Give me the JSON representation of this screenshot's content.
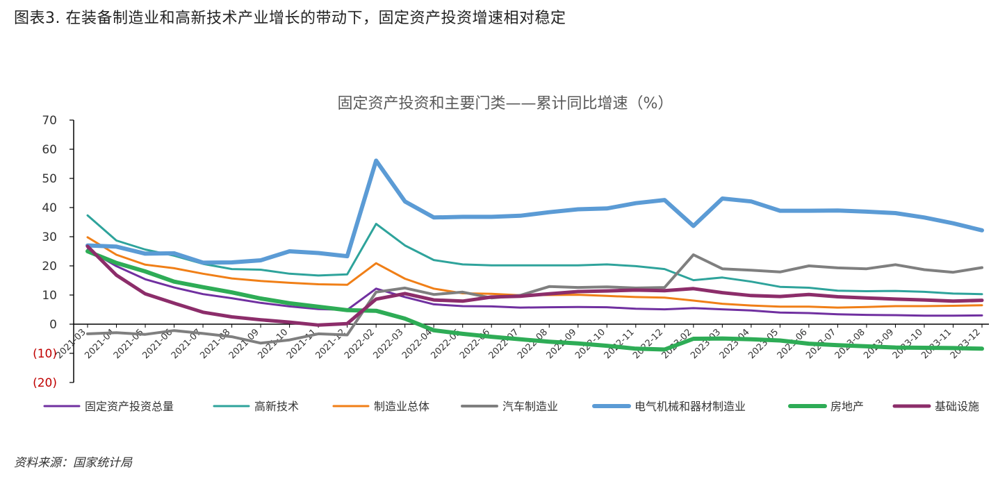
{
  "figure_title": "图表3. 在装备制造业和高新技术产业增长的带动下，固定资产投资增速相对稳定",
  "source": "资料来源：国家统计局",
  "chart_data": {
    "type": "line",
    "title": "固定资产投资和主要门类——累计同比增速（%）",
    "xlabel": "",
    "ylabel": "",
    "ylim": [
      -20,
      70
    ],
    "yticks": [
      70,
      60,
      50,
      40,
      30,
      20,
      10,
      0,
      -10,
      -20
    ],
    "ytick_labels": [
      "70",
      "60",
      "50",
      "40",
      "30",
      "20",
      "10",
      "0",
      "(10)",
      "(20)"
    ],
    "negative_tick_color": "#c00000",
    "grid": false,
    "legend_position": "bottom",
    "x": [
      "2021-03",
      "2021-04",
      "2021-05",
      "2021-06",
      "2021-07",
      "2021-08",
      "2021-09",
      "2021-10",
      "2021-11",
      "2021-12",
      "2022-02",
      "2022-03",
      "2022-04",
      "2022-05",
      "2022-06",
      "2022-07",
      "2022-08",
      "2022-09",
      "2022-10",
      "2022-11",
      "2022-12",
      "2023-02",
      "2023-03",
      "2023-04",
      "2023-05",
      "2023-06",
      "2023-07",
      "2023-08",
      "2023-09",
      "2023-10",
      "2023-11",
      "2023-12"
    ],
    "series": [
      {
        "name": "固定资产投资总量",
        "color": "#7030a0",
        "width": 3,
        "values": [
          25.6,
          19.9,
          15.4,
          12.6,
          10.3,
          8.9,
          7.3,
          6.1,
          5.2,
          4.9,
          12.2,
          9.3,
          6.8,
          6.2,
          6.1,
          5.7,
          5.8,
          5.9,
          5.8,
          5.3,
          5.1,
          5.5,
          5.1,
          4.7,
          4.0,
          3.8,
          3.4,
          3.2,
          3.1,
          2.9,
          2.9,
          3.0
        ]
      },
      {
        "name": "高新技术",
        "color": "#2ea39b",
        "width": 3,
        "values": [
          37.3,
          28.7,
          25.6,
          23.5,
          20.7,
          18.9,
          18.7,
          17.3,
          16.7,
          17.1,
          34.4,
          27.0,
          22.0,
          20.5,
          20.2,
          20.2,
          20.2,
          20.2,
          20.5,
          19.9,
          18.9,
          15.1,
          16.0,
          14.6,
          12.8,
          12.5,
          11.5,
          11.3,
          11.4,
          11.1,
          10.5,
          10.3
        ]
      },
      {
        "name": "制造业总体",
        "color": "#f07f17",
        "width": 3,
        "values": [
          29.8,
          23.8,
          20.4,
          19.2,
          17.3,
          15.7,
          14.8,
          14.2,
          13.7,
          13.5,
          20.9,
          15.6,
          12.2,
          10.6,
          10.4,
          9.9,
          10.0,
          10.1,
          9.7,
          9.3,
          9.1,
          8.1,
          7.0,
          6.4,
          6.0,
          6.0,
          5.7,
          5.9,
          6.2,
          6.2,
          6.3,
          6.5
        ]
      },
      {
        "name": "汽车制造业",
        "color": "#7f7f7f",
        "width": 4,
        "values": [
          -3.3,
          -2.9,
          -3.5,
          -2.2,
          -3.2,
          -4.3,
          -6.5,
          -5.4,
          -3.3,
          -3.7,
          11.0,
          12.4,
          10.2,
          11.0,
          9.0,
          9.9,
          12.9,
          12.6,
          12.8,
          12.4,
          12.6,
          23.8,
          19.0,
          18.5,
          17.9,
          20.0,
          19.3,
          19.0,
          20.4,
          18.7,
          17.8,
          19.4
        ]
      },
      {
        "name": "电气机械和器材制造业",
        "color": "#5b9bd5",
        "width": 6,
        "values": [
          27.0,
          26.6,
          24.2,
          24.3,
          21.1,
          21.2,
          21.9,
          25.0,
          24.4,
          23.3,
          56.1,
          42.1,
          36.6,
          36.8,
          36.8,
          37.2,
          38.4,
          39.4,
          39.7,
          41.5,
          42.6,
          33.7,
          43.1,
          42.1,
          38.9,
          38.9,
          39.0,
          38.6,
          38.1,
          36.6,
          34.6,
          32.2
        ]
      },
      {
        "name": "房地产",
        "color": "#2eac56",
        "width": 6,
        "values": [
          25.0,
          21.0,
          18.1,
          14.6,
          12.7,
          10.9,
          8.8,
          7.2,
          6.0,
          4.8,
          4.6,
          1.9,
          -2.1,
          -3.3,
          -4.3,
          -5.2,
          -6.0,
          -6.6,
          -7.4,
          -8.4,
          -8.7,
          -5.0,
          -4.9,
          -5.2,
          -5.6,
          -6.7,
          -7.2,
          -7.6,
          -8.0,
          -8.1,
          -8.2,
          -8.4
        ]
      },
      {
        "name": "基础设施",
        "color": "#8c2d6a",
        "width": 5,
        "values": [
          26.7,
          16.8,
          10.4,
          7.2,
          4.1,
          2.5,
          1.5,
          0.7,
          -0.3,
          0.2,
          8.6,
          10.5,
          8.3,
          7.9,
          9.3,
          9.6,
          10.4,
          11.2,
          11.4,
          11.7,
          11.5,
          12.2,
          10.8,
          9.8,
          9.5,
          10.2,
          9.4,
          9.0,
          8.6,
          8.3,
          7.9,
          8.2
        ]
      }
    ]
  }
}
